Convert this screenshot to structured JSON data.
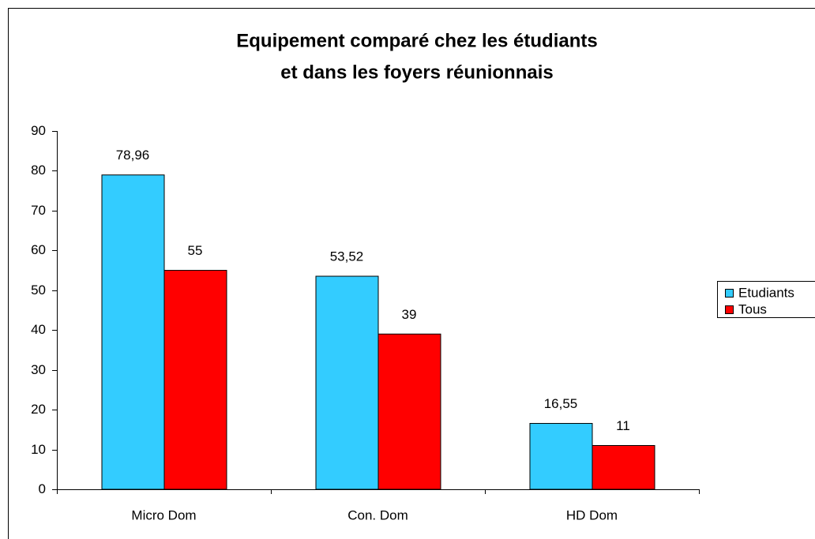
{
  "chart_data": {
    "type": "bar",
    "title": [
      "Equipement comparé chez les étudiants",
      "et dans les foyers réunionnais"
    ],
    "categories": [
      "Micro Dom",
      "Con. Dom",
      "HD Dom"
    ],
    "series": [
      {
        "name": "Etudiants",
        "color": "#33ccff",
        "values": [
          78.96,
          53.52,
          16.55
        ],
        "value_labels": [
          "78,96",
          "53,52",
          "16,55"
        ]
      },
      {
        "name": "Tous",
        "color": "#ff0000",
        "values": [
          55,
          39,
          11
        ]
      }
    ],
    "ylim": [
      0,
      90
    ],
    "yticks": [
      0,
      10,
      20,
      30,
      40,
      50,
      60,
      70,
      80,
      90
    ],
    "grid": false,
    "legend": "right"
  }
}
